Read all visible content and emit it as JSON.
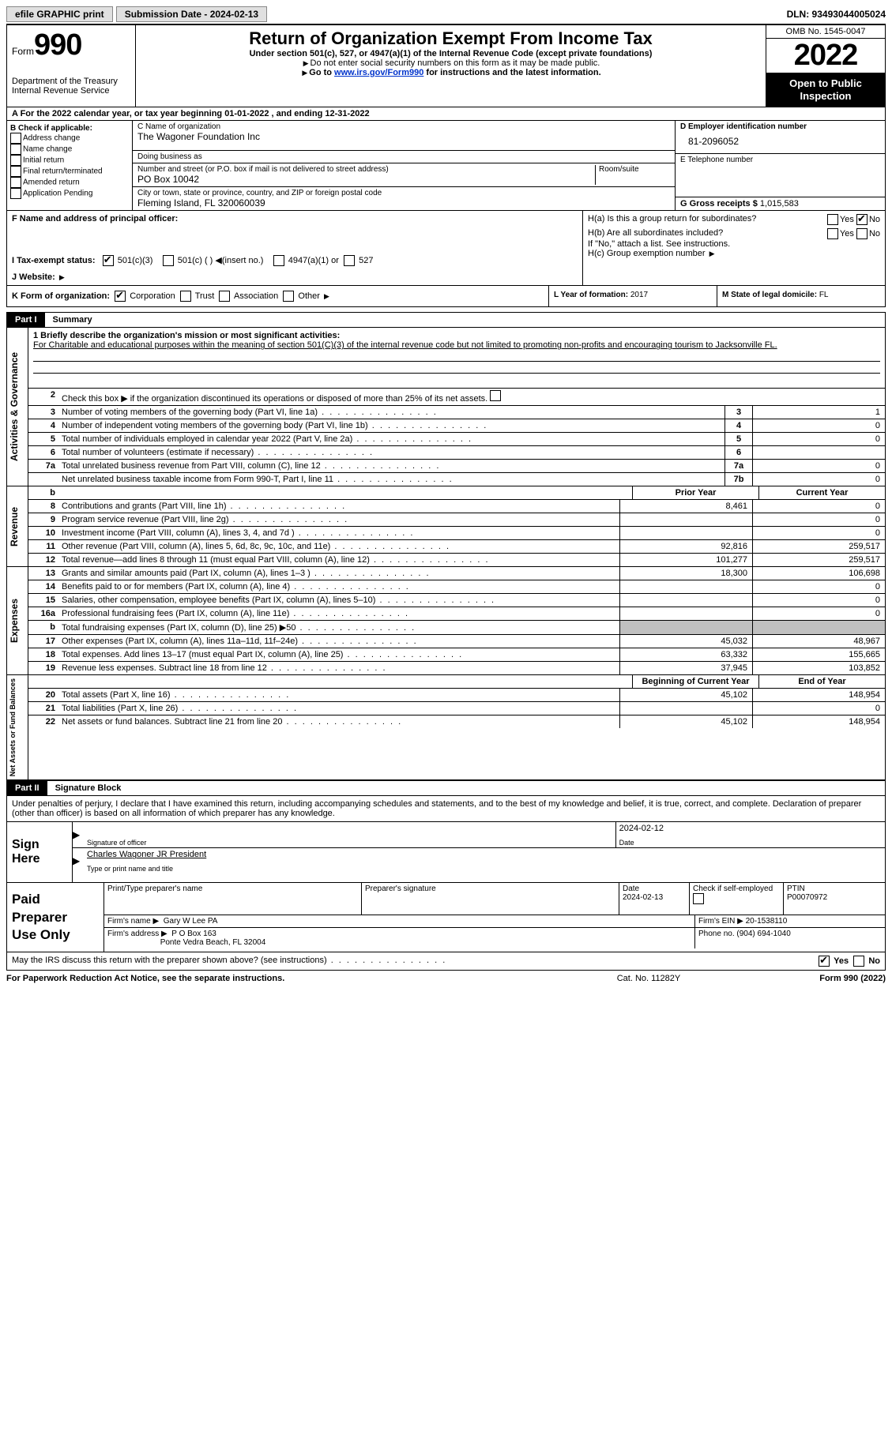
{
  "topbar": {
    "efile": "efile GRAPHIC print",
    "submission_label": "Submission Date - 2024-02-13",
    "dln": "DLN: 93493044005024"
  },
  "header": {
    "form_word": "Form",
    "form_num": "990",
    "dept": "Department of the Treasury",
    "irs": "Internal Revenue Service",
    "title": "Return of Organization Exempt From Income Tax",
    "subtitle": "Under section 501(c), 527, or 4947(a)(1) of the Internal Revenue Code (except private foundations)",
    "note1": "Do not enter social security numbers on this form as it may be made public.",
    "note2_pre": "Go to ",
    "note2_link": "www.irs.gov/Form990",
    "note2_post": " for instructions and the latest information.",
    "omb": "OMB No. 1545-0047",
    "year": "2022",
    "otp1": "Open to Public",
    "otp2": "Inspection"
  },
  "period": "A For the 2022 calendar year, or tax year beginning 01-01-2022    , and ending 12-31-2022",
  "block_b": {
    "label": "B Check if applicable:",
    "opts": [
      "Address change",
      "Name change",
      "Initial return",
      "Final return/terminated",
      "Amended return",
      "Application Pending"
    ]
  },
  "block_c": {
    "name_label": "C Name of organization",
    "name": "The Wagoner Foundation Inc",
    "dba_label": "Doing business as",
    "dba": "",
    "addr_label": "Number and street (or P.O. box if mail is not delivered to street address)",
    "room_label": "Room/suite",
    "addr": "PO Box 10042",
    "city_label": "City or town, state or province, country, and ZIP or foreign postal code",
    "city": "Fleming Island, FL   320060039"
  },
  "block_d": {
    "ein_label": "D Employer identification number",
    "ein": "81-2096052",
    "tel_label": "E Telephone number",
    "tel": "",
    "gross_label": "G Gross receipts $",
    "gross": "1,015,583"
  },
  "row_f": {
    "f_label": "F Name and address of principal officer:",
    "f_val": "",
    "ha_label": "H(a)  Is this a group return for subordinates?",
    "ha_yes": "Yes",
    "ha_no": "No",
    "hb_label": "H(b)  Are all subordinates included?",
    "hb_note": "If \"No,\" attach a list. See instructions.",
    "hc_label": "H(c)  Group exemption number"
  },
  "row_i": {
    "label": "I   Tax-exempt status:",
    "o1": "501(c)(3)",
    "o2": "501(c) (  )",
    "o2a": "(insert no.)",
    "o3": "4947(a)(1) or",
    "o4": "527"
  },
  "row_j": {
    "label": "J   Website:",
    "arrow": "▶"
  },
  "row_k": {
    "label": "K Form of organization:",
    "opts": [
      "Corporation",
      "Trust",
      "Association",
      "Other"
    ]
  },
  "row_l": {
    "label": "L Year of formation:",
    "val": "2017"
  },
  "row_m": {
    "label": "M State of legal domicile:",
    "val": "FL"
  },
  "part1": {
    "num": "Part I",
    "title": "Summary"
  },
  "part2": {
    "num": "Part II",
    "title": "Signature Block"
  },
  "mission": {
    "label": "1   Briefly describe the organization's mission or most significant activities:",
    "text": "For Charitable and educational purposes within the meaning of section 501(C)(3) of the internal revenue code but not limited to promoting non-profits and encouraging tourism to Jacksonville FL."
  },
  "line2": "Check this box ▶       if the organization discontinued its operations or disposed of more than 25% of its net assets.",
  "summary_rows_gov": [
    {
      "n": "3",
      "d": "Number of voting members of the governing body (Part VI, line 1a)",
      "box": "3",
      "v": "1"
    },
    {
      "n": "4",
      "d": "Number of independent voting members of the governing body (Part VI, line 1b)",
      "box": "4",
      "v": "0"
    },
    {
      "n": "5",
      "d": "Total number of individuals employed in calendar year 2022 (Part V, line 2a)",
      "box": "5",
      "v": "0"
    },
    {
      "n": "6",
      "d": "Total number of volunteers (estimate if necessary)",
      "box": "6",
      "v": ""
    },
    {
      "n": "7a",
      "d": "Total unrelated business revenue from Part VIII, column (C), line 12",
      "box": "7a",
      "v": "0"
    },
    {
      "n": "",
      "d": "Net unrelated business taxable income from Form 990-T, Part I, line 11",
      "box": "7b",
      "v": "0"
    }
  ],
  "col_headers": {
    "b": "b",
    "prior": "Prior Year",
    "current": "Current Year"
  },
  "revenue_rows": [
    {
      "n": "8",
      "d": "Contributions and grants (Part VIII, line 1h)",
      "p": "8,461",
      "c": "0"
    },
    {
      "n": "9",
      "d": "Program service revenue (Part VIII, line 2g)",
      "p": "",
      "c": "0"
    },
    {
      "n": "10",
      "d": "Investment income (Part VIII, column (A), lines 3, 4, and 7d )",
      "p": "",
      "c": "0"
    },
    {
      "n": "11",
      "d": "Other revenue (Part VIII, column (A), lines 5, 6d, 8c, 9c, 10c, and 11e)",
      "p": "92,816",
      "c": "259,517"
    },
    {
      "n": "12",
      "d": "Total revenue—add lines 8 through 11 (must equal Part VIII, column (A), line 12)",
      "p": "101,277",
      "c": "259,517"
    }
  ],
  "expense_rows": [
    {
      "n": "13",
      "d": "Grants and similar amounts paid (Part IX, column (A), lines 1–3 )",
      "p": "18,300",
      "c": "106,698"
    },
    {
      "n": "14",
      "d": "Benefits paid to or for members (Part IX, column (A), line 4)",
      "p": "",
      "c": "0"
    },
    {
      "n": "15",
      "d": "Salaries, other compensation, employee benefits (Part IX, column (A), lines 5–10)",
      "p": "",
      "c": "0"
    },
    {
      "n": "16a",
      "d": "Professional fundraising fees (Part IX, column (A), line 11e)",
      "p": "",
      "c": "0"
    },
    {
      "n": "b",
      "d": "Total fundraising expenses (Part IX, column (D), line 25) ▶50",
      "p": "shaded",
      "c": "shaded"
    },
    {
      "n": "17",
      "d": "Other expenses (Part IX, column (A), lines 11a–11d, 11f–24e)",
      "p": "45,032",
      "c": "48,967"
    },
    {
      "n": "18",
      "d": "Total expenses. Add lines 13–17 (must equal Part IX, column (A), line 25)",
      "p": "63,332",
      "c": "155,665"
    },
    {
      "n": "19",
      "d": "Revenue less expenses. Subtract line 18 from line 12",
      "p": "37,945",
      "c": "103,852"
    }
  ],
  "net_headers": {
    "beg": "Beginning of Current Year",
    "end": "End of Year"
  },
  "net_rows": [
    {
      "n": "20",
      "d": "Total assets (Part X, line 16)",
      "p": "45,102",
      "c": "148,954"
    },
    {
      "n": "21",
      "d": "Total liabilities (Part X, line 26)",
      "p": "",
      "c": "0"
    },
    {
      "n": "22",
      "d": "Net assets or fund balances. Subtract line 21 from line 20",
      "p": "45,102",
      "c": "148,954"
    }
  ],
  "vlabels": {
    "gov": "Activities & Governance",
    "rev": "Revenue",
    "exp": "Expenses",
    "net": "Net Assets or Fund Balances"
  },
  "sig_intro": "Under penalties of perjury, I declare that I have examined this return, including accompanying schedules and statements, and to the best of my knowledge and belief, it is true, correct, and complete. Declaration of preparer (other than officer) is based on all information of which preparer has any knowledge.",
  "sign": {
    "label1": "Sign",
    "label2": "Here",
    "sig_of_officer": "Signature of officer",
    "date": "Date",
    "date_val": "2024-02-12",
    "name": "Charles Wagoner JR  President",
    "type_name": "Type or print name and title"
  },
  "paid": {
    "label1": "Paid",
    "label2": "Preparer",
    "label3": "Use Only",
    "r1": {
      "c1": "Print/Type preparer's name",
      "c2": "Preparer's signature",
      "c3l": "Date",
      "c3v": "2024-02-13",
      "c4l": "Check         if self-employed",
      "c5l": "PTIN",
      "c5v": "P00070972"
    },
    "r2": {
      "l": "Firm's name    ▶",
      "v": "Gary W Lee PA",
      "einl": "Firm's EIN ▶",
      "einv": "20-1538110"
    },
    "r3": {
      "l": "Firm's address ▶",
      "v1": "P O Box 163",
      "v2": "Ponte Vedra Beach, FL  32004",
      "phl": "Phone no.",
      "phv": "(904) 694-1040"
    }
  },
  "discuss": {
    "q": "May the IRS discuss this return with the preparer shown above? (see instructions)",
    "yes": "Yes",
    "no": "No"
  },
  "footer": {
    "left": "For Paperwork Reduction Act Notice, see the separate instructions.",
    "mid": "Cat. No. 11282Y",
    "right": "Form 990 (2022)"
  }
}
